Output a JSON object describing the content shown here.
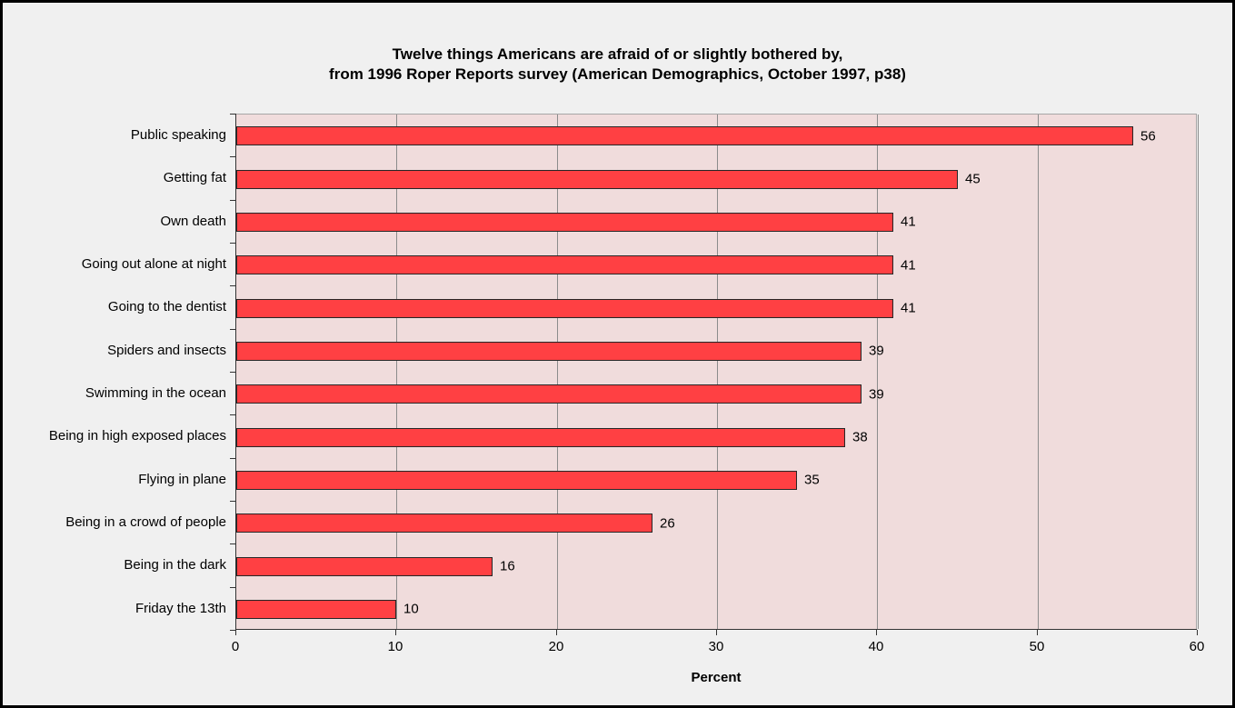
{
  "chart_data": {
    "type": "bar",
    "orientation": "horizontal",
    "title": "Twelve things Americans are afraid of or slightly bothered by, from 1996 Roper Reports survey (American Demographics, October 1997, p38)",
    "title_lines": [
      "Twelve things Americans are afraid of or slightly bothered by,",
      "from 1996 Roper Reports survey (American Demographics, October 1997, p38)"
    ],
    "categories": [
      "Public speaking",
      "Getting fat",
      "Own death",
      "Going out alone at night",
      "Going to the dentist",
      "Spiders and insects",
      "Swimming in the ocean",
      "Being in high exposed places",
      "Flying in plane",
      "Being in a crowd of people",
      "Being in the dark",
      "Friday the 13th"
    ],
    "values": [
      56,
      45,
      41,
      41,
      41,
      39,
      39,
      38,
      35,
      26,
      16,
      10
    ],
    "data_labels_shown": true,
    "xlabel": "Percent",
    "ylabel": "",
    "xlim": [
      0,
      60
    ],
    "xticks": [
      0,
      10,
      20,
      30,
      40,
      50,
      60
    ],
    "grid": "vertical-only",
    "legend": "none",
    "colors": {
      "bar_fill": "#ff4043",
      "bar_border": "#262626",
      "plot_bg": "#f0dcdc",
      "plot_border": "#a6a6a6",
      "gridline": "#8c8c8c",
      "axis": "#333333",
      "page_bg": "#f0f0f0",
      "frame_border": "#000000",
      "text": "#000000"
    }
  }
}
